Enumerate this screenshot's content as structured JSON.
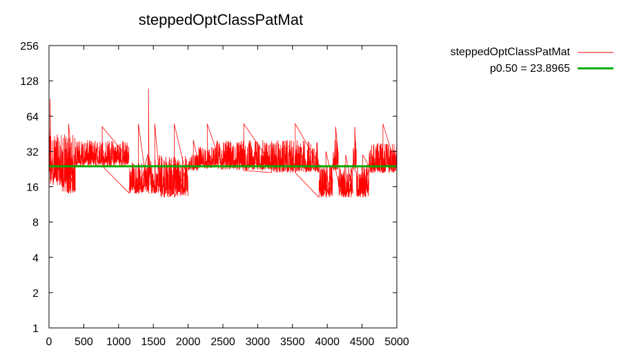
{
  "chart_data": {
    "type": "line",
    "title": "steppedOptClassPatMat",
    "xlabel": "",
    "ylabel": "",
    "xlim": [
      0,
      5000
    ],
    "ylim": [
      1,
      256
    ],
    "y_scale": "log2",
    "grid": false,
    "legend_position": "top-right, outside plot",
    "x_ticks": [
      "0",
      "500",
      "1000",
      "1500",
      "2000",
      "2500",
      "3000",
      "3500",
      "4000",
      "4500",
      "5000"
    ],
    "y_ticks": [
      "1",
      "2",
      "4",
      "8",
      "16",
      "32",
      "64",
      "128",
      "256"
    ],
    "series": [
      {
        "name": "steppedOptClassPatMat",
        "color": "#ff0000",
        "style": "noisy line, ~5000 samples",
        "segments": [
          {
            "x": [
              0,
              30
            ],
            "low": 17,
            "high": 50,
            "spike": 90
          },
          {
            "x": [
              30,
              180
            ],
            "low": 16.5,
            "high": 45
          },
          {
            "x": [
              180,
              380
            ],
            "low": 14,
            "high": 45,
            "spike": 55
          },
          {
            "x": [
              380,
              1150
            ],
            "low": 24,
            "high": 40,
            "spike": 52
          },
          {
            "x": [
              1150,
              1420
            ],
            "low": 14,
            "high": 26,
            "spike": 55
          },
          {
            "x": [
              1420,
              1440
            ],
            "low": 14,
            "high": 40,
            "spike": 110
          },
          {
            "x": [
              1440,
              1600
            ],
            "low": 14,
            "high": 30,
            "spike": 55
          },
          {
            "x": [
              1600,
              2000
            ],
            "low": 13,
            "high": 30,
            "spike": 55
          },
          {
            "x": [
              2000,
              2150
            ],
            "low": 22,
            "high": 30,
            "spike": 40
          },
          {
            "x": [
              2150,
              2400
            ],
            "low": 23,
            "high": 35,
            "spike": 55
          },
          {
            "x": [
              2400,
              3200
            ],
            "low": 22,
            "high": 40,
            "spike": 55
          },
          {
            "x": [
              3200,
              3880
            ],
            "low": 21,
            "high": 40,
            "spike": 55
          },
          {
            "x": [
              3880,
              4080
            ],
            "low": 13,
            "high": 25,
            "spike": 32
          },
          {
            "x": [
              4080,
              4160
            ],
            "low": 22,
            "high": 40,
            "spike": 52
          },
          {
            "x": [
              4160,
              4370
            ],
            "low": 13,
            "high": 25,
            "spike": 30
          },
          {
            "x": [
              4370,
              4420
            ],
            "low": 22,
            "high": 40,
            "spike": 52
          },
          {
            "x": [
              4420,
              4600
            ],
            "low": 13,
            "high": 25,
            "spike": 30
          },
          {
            "x": [
              4600,
              5000
            ],
            "low": 21,
            "high": 38,
            "spike": 55
          }
        ]
      },
      {
        "name": "p0.50 = 23.8965",
        "color": "#00aa00",
        "type": "hline",
        "y": 23.8965
      }
    ]
  }
}
